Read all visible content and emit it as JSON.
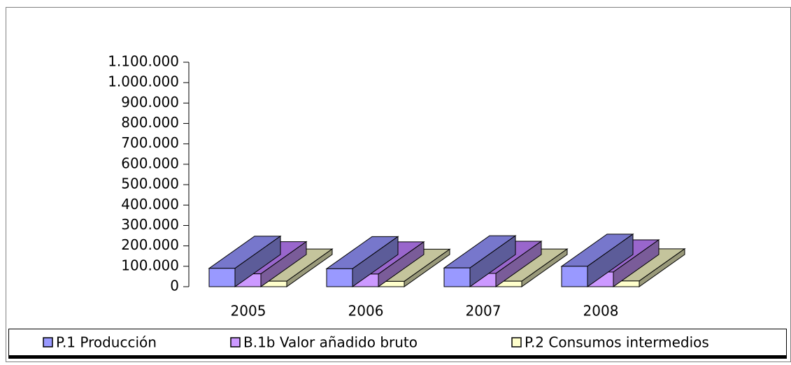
{
  "chart_data": {
    "type": "bar3d",
    "categories": [
      "2005",
      "2006",
      "2007",
      "2008"
    ],
    "series": [
      {
        "name": "P.1 Producción",
        "color": "#9999ff",
        "values": [
          90000,
          88000,
          92000,
          100000
        ]
      },
      {
        "name": "B.1b Valor añadido bruto",
        "color": "#cc99ff",
        "values": [
          63000,
          62000,
          65000,
          72000
        ]
      },
      {
        "name": "P.2 Consumos intermedios",
        "color": "#ffffcc",
        "values": [
          27000,
          26000,
          27000,
          28000
        ]
      }
    ],
    "ylim": [
      0,
      1100000
    ],
    "yticks": [
      0,
      {
        "value": 100000,
        "label": "100.000"
      },
      {
        "value": 200000,
        "label": "200.000"
      },
      {
        "value": 300000,
        "label": "300.000"
      },
      {
        "value": 400000,
        "label": "400.000"
      },
      {
        "value": 500000,
        "label": "500.000"
      },
      {
        "value": 600000,
        "label": "600.000"
      },
      {
        "value": 700000,
        "label": "700.000"
      },
      {
        "value": 800000,
        "label": "800.000"
      },
      {
        "value": 900000,
        "label": "900.000"
      },
      {
        "value": 1000000,
        "label": "1.000.000"
      },
      {
        "value": 1100000,
        "label": "1.100.000"
      }
    ],
    "legend": "bottom"
  }
}
